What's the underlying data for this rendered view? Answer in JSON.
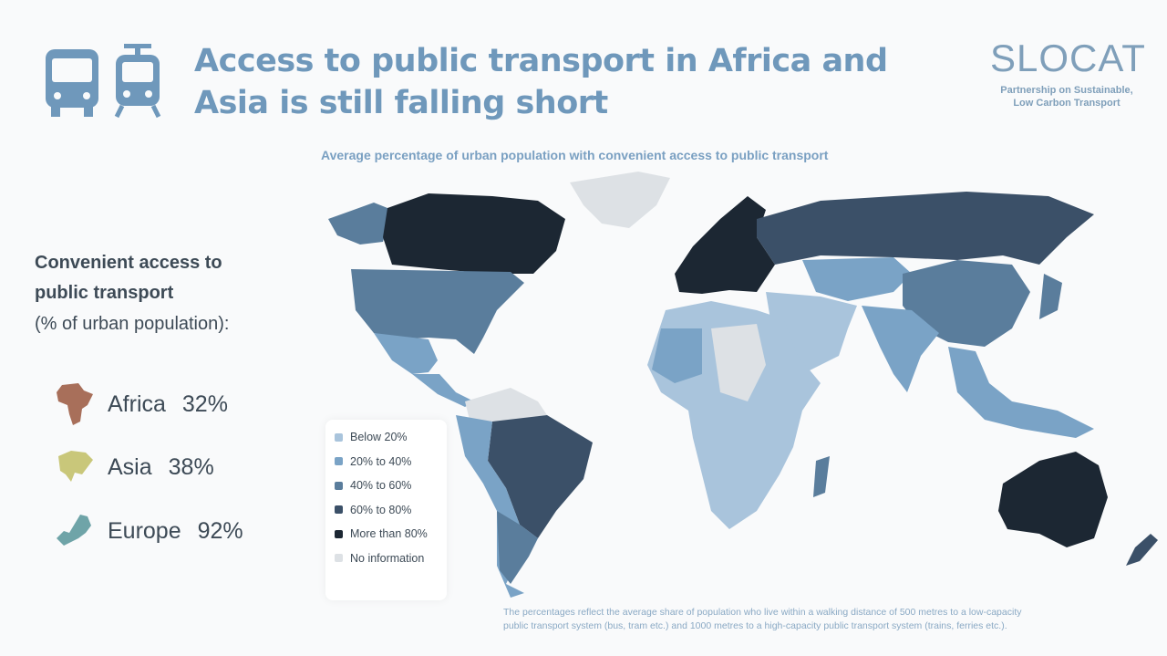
{
  "header": {
    "title_line1": "Access to public transport in Africa and",
    "title_line2": "Asia is still falling short",
    "icons": [
      "bus-icon",
      "tram-icon"
    ]
  },
  "logo": {
    "name": "SLOCAT",
    "tagline_line1": "Partnership on Sustainable,",
    "tagline_line2": "Low Carbon Transport"
  },
  "map": {
    "title": "Average percentage of urban population with convenient access to public transport"
  },
  "sidebar": {
    "heading_line1": "Convenient access to",
    "heading_line2": "public transport",
    "subheading": "(% of urban population):",
    "regions": [
      {
        "name": "Africa",
        "value": "32%",
        "color": "#a86f5a"
      },
      {
        "name": "Asia",
        "value": "38%",
        "color": "#c9c77a"
      },
      {
        "name": "Europe",
        "value": "92%",
        "color": "#6fa4a8"
      }
    ]
  },
  "legend": {
    "items": [
      {
        "label": "Below 20%",
        "color": "#a9c4dc"
      },
      {
        "label": "20% to 40%",
        "color": "#7aa3c6"
      },
      {
        "label": "40% to 60%",
        "color": "#5a7d9c"
      },
      {
        "label": "60% to 80%",
        "color": "#3b5068"
      },
      {
        "label": "More than 80%",
        "color": "#1c2733"
      },
      {
        "label": "No information",
        "color": "#dde1e5"
      }
    ]
  },
  "footnote": {
    "line1": "The percentages reflect the average share of population who live within a walking distance of 500 metres to a low-capacity",
    "line2": "public transport system (bus, tram etc.) and 1000 metres to a high-capacity public transport system (trains, ferries etc.)."
  }
}
